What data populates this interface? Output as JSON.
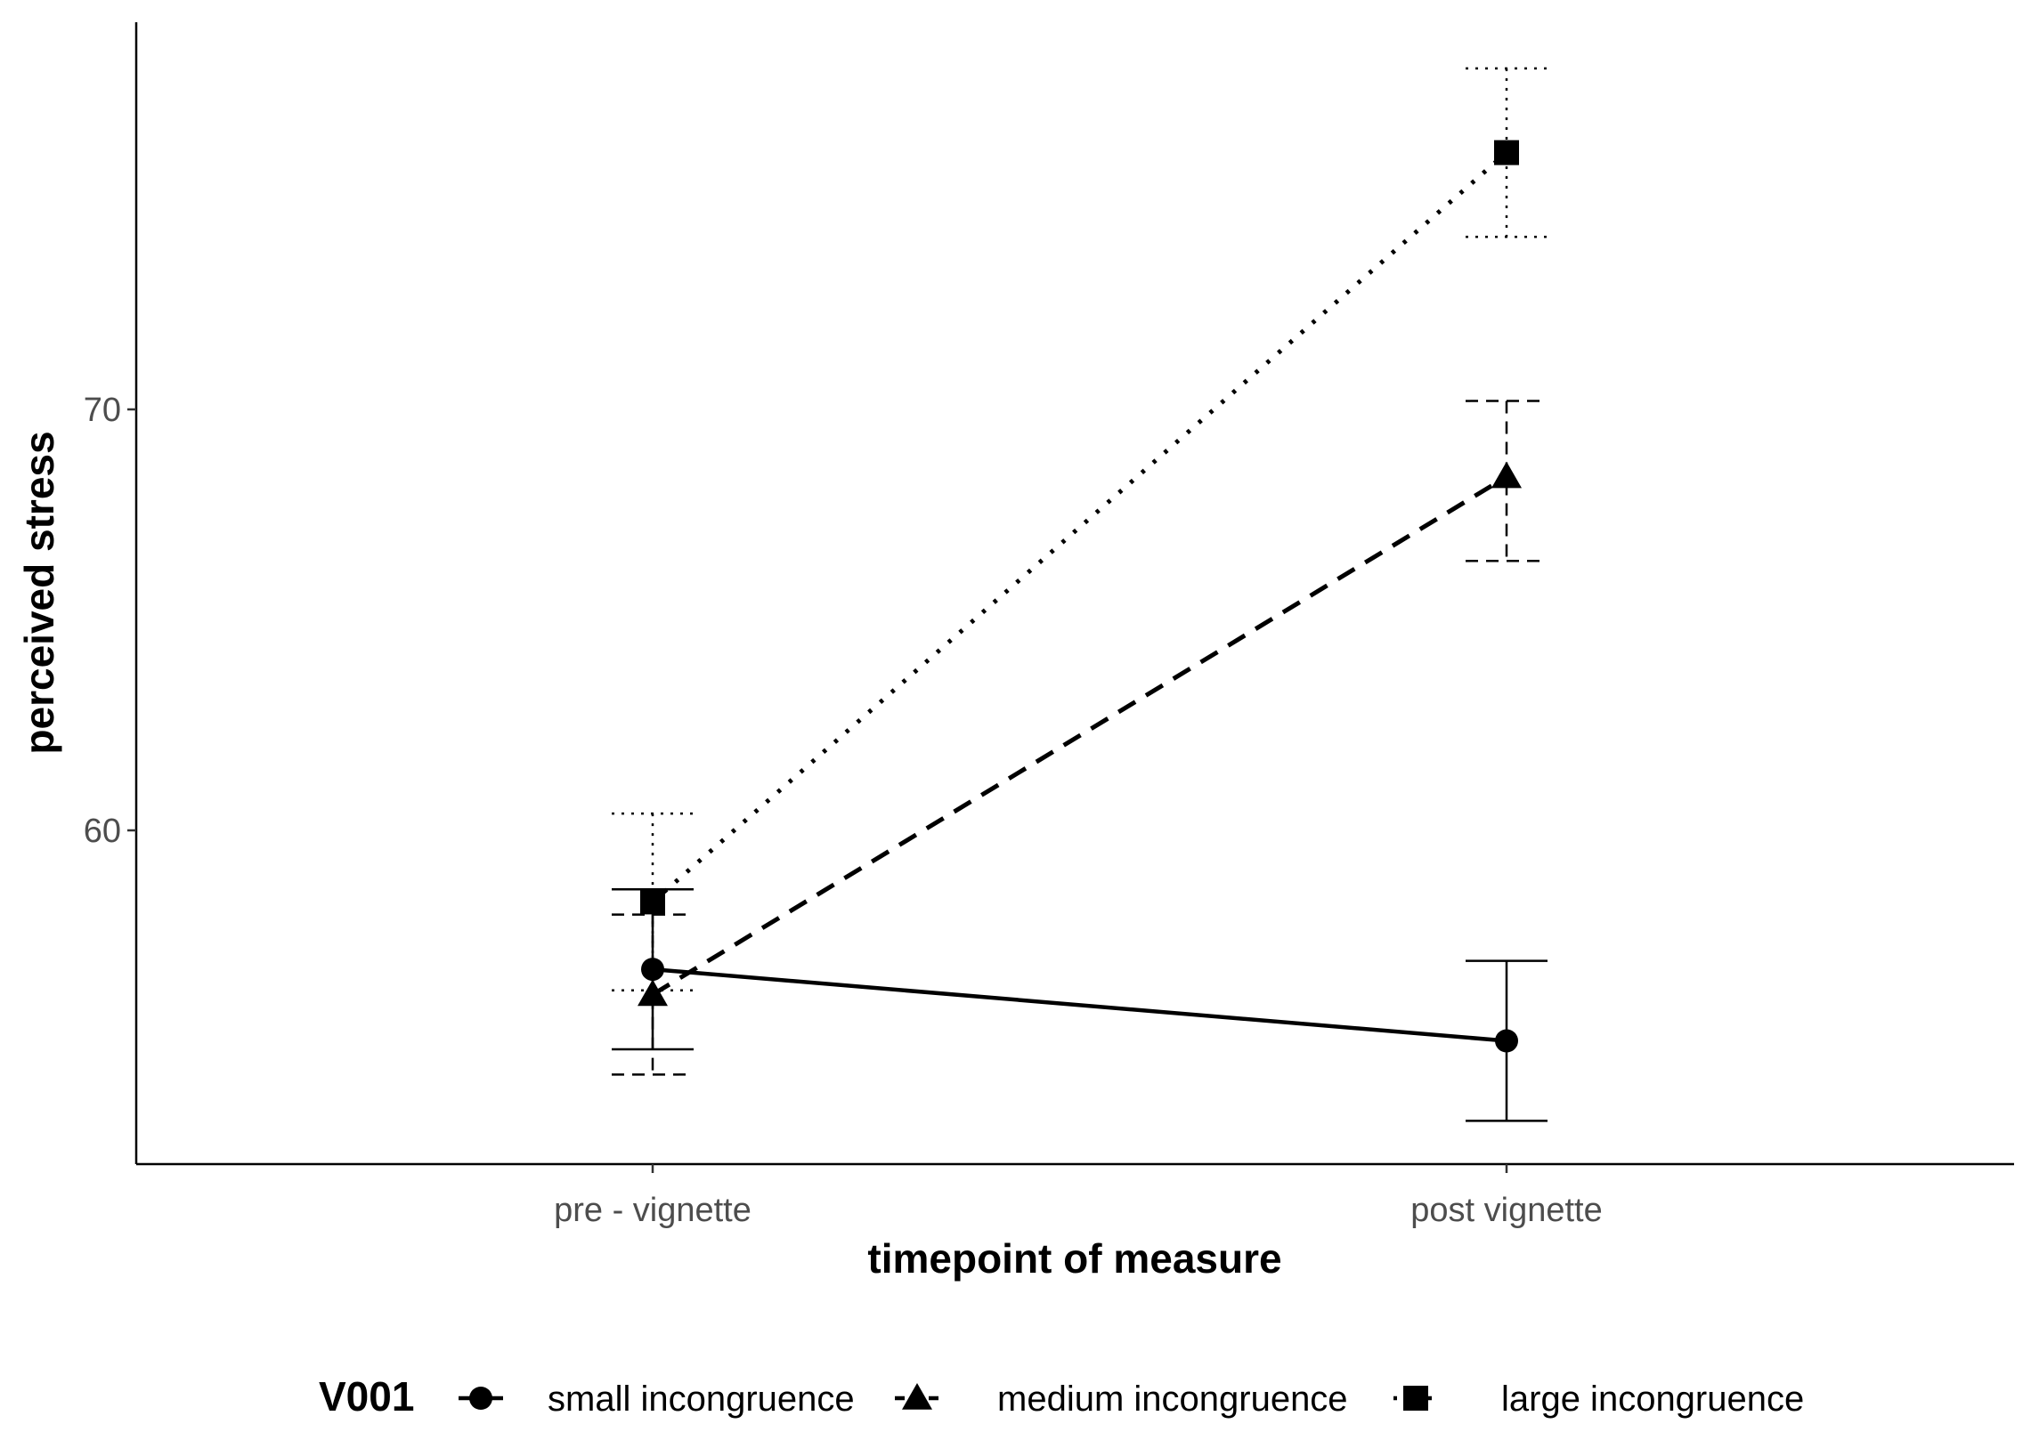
{
  "chart_data": {
    "type": "line",
    "title": "",
    "xlabel": "timepoint of measure",
    "ylabel": "perceived stress",
    "categories": [
      "pre - vignette",
      "post vignette"
    ],
    "ylim": [
      51.9,
      79.5
    ],
    "yticks": [
      60,
      70
    ],
    "grid": false,
    "legend": {
      "title": "V001",
      "position": "bottom"
    },
    "series": [
      {
        "name": "small incongruence",
        "marker": "circle",
        "linestyle": "solid",
        "values": [
          56.7,
          55.0
        ],
        "lower": [
          54.8,
          53.1
        ],
        "upper": [
          58.6,
          56.9
        ]
      },
      {
        "name": "medium incongruence",
        "marker": "triangle",
        "linestyle": "dashed",
        "values": [
          56.1,
          68.4
        ],
        "lower": [
          54.2,
          66.4
        ],
        "upper": [
          58.0,
          70.2
        ]
      },
      {
        "name": "large incongruence",
        "marker": "square",
        "linestyle": "dotted",
        "values": [
          58.3,
          76.1
        ],
        "lower": [
          56.2,
          74.1
        ],
        "upper": [
          60.4,
          78.1
        ]
      }
    ]
  }
}
